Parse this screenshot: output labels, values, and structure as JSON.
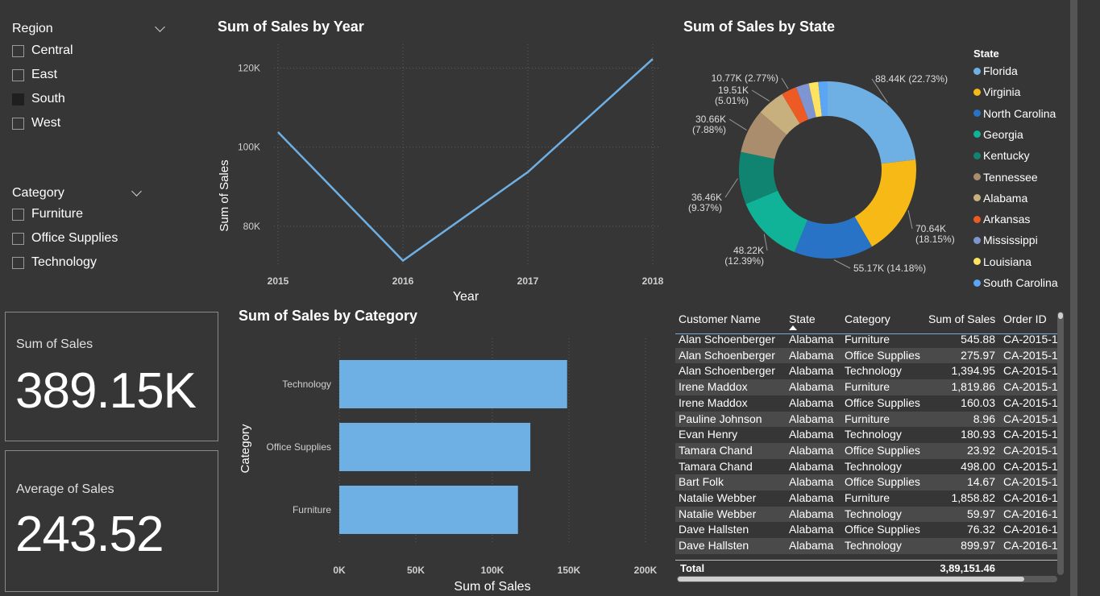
{
  "slicers": {
    "region": {
      "title": "Region",
      "options": [
        {
          "label": "Central",
          "checked": false
        },
        {
          "label": "East",
          "checked": false
        },
        {
          "label": "South",
          "checked": true
        },
        {
          "label": "West",
          "checked": false
        }
      ]
    },
    "category": {
      "title": "Category",
      "options": [
        {
          "label": "Furniture",
          "checked": false
        },
        {
          "label": "Office Supplies",
          "checked": false
        },
        {
          "label": "Technology",
          "checked": false
        }
      ]
    }
  },
  "cards": {
    "sum": {
      "label": "Sum of Sales",
      "value": "389.15K"
    },
    "avg": {
      "label": "Average of Sales",
      "value": "243.52"
    }
  },
  "colors": {
    "line": "#6fb0e4",
    "bar": "#6fb0e4"
  },
  "chart_data": [
    {
      "type": "line",
      "title": "Sum of Sales by Year",
      "xlabel": "Year",
      "ylabel": "Sum of Sales",
      "x": [
        "2015",
        "2016",
        "2017",
        "2018"
      ],
      "series": [
        {
          "values": [
            103800,
            71300,
            93700,
            122300
          ]
        }
      ],
      "yticks": [
        "80K",
        "100K",
        "120K"
      ],
      "ylim": [
        70000,
        126000
      ],
      "grid": true
    },
    {
      "type": "bar",
      "orientation": "horizontal",
      "title": "Sum of Sales by Category",
      "xlabel": "Sum of Sales",
      "ylabel": "Category",
      "categories": [
        "Technology",
        "Office Supplies",
        "Furniture"
      ],
      "values": [
        148800,
        124800,
        116700
      ],
      "xticks": [
        "0K",
        "50K",
        "100K",
        "150K",
        "200K"
      ],
      "xlim": [
        0,
        200000
      ],
      "grid": true
    },
    {
      "type": "pie",
      "variant": "donut",
      "title": "Sum of Sales by State",
      "legend_title": "State",
      "legend_position": "right",
      "slices": [
        {
          "label": "Florida",
          "value": 88440,
          "display": "88.44K (22.73%)",
          "color": "#6fb0e4"
        },
        {
          "label": "Virginia",
          "value": 70640,
          "display": "70.64K (18.15%)",
          "color": "#f6b915"
        },
        {
          "label": "North Carolina",
          "value": 55170,
          "display": "55.17K (14.18%)",
          "color": "#2873c6"
        },
        {
          "label": "Georgia",
          "value": 48220,
          "display": "48.22K (12.39%)",
          "color": "#11b398"
        },
        {
          "label": "Kentucky",
          "value": 36460,
          "display": "36.46K (9.37%)",
          "color": "#108471"
        },
        {
          "label": "Tennessee",
          "value": 30660,
          "display": "30.66K (7.88%)",
          "color": "#a98d6c"
        },
        {
          "label": "Alabama",
          "value": 19510,
          "display": "19.51K (5.01%)",
          "color": "#c7b07e"
        },
        {
          "label": "Arkansas",
          "value": 10770,
          "display": "10.77K (2.77%)",
          "color": "#ee5a23"
        },
        {
          "label": "Mississippi",
          "value": 9000,
          "display": "",
          "color": "#7f95d1"
        },
        {
          "label": "Louisiana",
          "value": 6600,
          "display": "",
          "color": "#fde35f"
        },
        {
          "label": "South Carolina",
          "value": 6500,
          "display": "",
          "color": "#5aa5f4"
        }
      ],
      "label_display": [
        {
          "line1": "88.44K (22.73%)",
          "line2": ""
        },
        {
          "line1": "70.64K",
          "line2": "(18.15%)"
        },
        {
          "line1": "55.17K (14.18%)",
          "line2": ""
        },
        {
          "line1": "48.22K",
          "line2": "(12.39%)"
        },
        {
          "line1": "36.46K",
          "line2": "(9.37%)"
        },
        {
          "line1": "30.66K",
          "line2": "(7.88%)"
        },
        {
          "line1": "19.51K",
          "line2": "(5.01%)"
        },
        {
          "line1": "10.77K (2.77%)",
          "line2": ""
        }
      ]
    },
    {
      "type": "table",
      "columns": [
        "Customer Name",
        "State",
        "Category",
        "Sum of Sales",
        "Order ID"
      ],
      "sort_column": "State",
      "rows": [
        [
          "Alan Schoenberger",
          "Alabama",
          "Furniture",
          "545.88",
          "CA-2015-1"
        ],
        [
          "Alan Schoenberger",
          "Alabama",
          "Office Supplies",
          "275.97",
          "CA-2015-1"
        ],
        [
          "Alan Schoenberger",
          "Alabama",
          "Technology",
          "1,394.95",
          "CA-2015-1"
        ],
        [
          "Irene Maddox",
          "Alabama",
          "Furniture",
          "1,819.86",
          "CA-2015-1"
        ],
        [
          "Irene Maddox",
          "Alabama",
          "Office Supplies",
          "160.03",
          "CA-2015-1"
        ],
        [
          "Pauline Johnson",
          "Alabama",
          "Furniture",
          "8.96",
          "CA-2015-1"
        ],
        [
          "Evan Henry",
          "Alabama",
          "Technology",
          "180.93",
          "CA-2015-1"
        ],
        [
          "Tamara Chand",
          "Alabama",
          "Office Supplies",
          "23.92",
          "CA-2015-1"
        ],
        [
          "Tamara Chand",
          "Alabama",
          "Technology",
          "498.00",
          "CA-2015-1"
        ],
        [
          "Bart Folk",
          "Alabama",
          "Office Supplies",
          "14.67",
          "CA-2015-1"
        ],
        [
          "Natalie Webber",
          "Alabama",
          "Furniture",
          "1,858.82",
          "CA-2016-1"
        ],
        [
          "Natalie Webber",
          "Alabama",
          "Technology",
          "59.97",
          "CA-2016-1"
        ],
        [
          "Dave Hallsten",
          "Alabama",
          "Office Supplies",
          "76.32",
          "CA-2016-1"
        ],
        [
          "Dave Hallsten",
          "Alabama",
          "Technology",
          "899.97",
          "CA-2016-1"
        ]
      ],
      "total_label": "Total",
      "total_value": "3,89,151.46"
    }
  ]
}
